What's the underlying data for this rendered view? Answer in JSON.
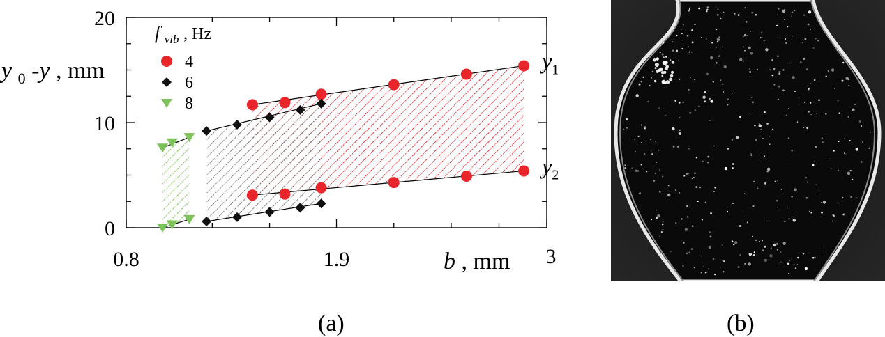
{
  "chart_data": {
    "type": "scatter",
    "xlabel": "b",
    "xunit": "mm",
    "ylabel_parts": {
      "a": "y",
      "a_sub": "0",
      "b": "-y",
      "unit": "mm"
    },
    "xlim": [
      0.8,
      3.0
    ],
    "ylim": [
      0,
      20
    ],
    "x_tick_labels": [
      "0.8",
      "1.9",
      "3"
    ],
    "x_tick_values": [
      0.8,
      1.9,
      3.0
    ],
    "x_minor_ticks": [
      1.25,
      1.55,
      2.2,
      2.5,
      2.75
    ],
    "y_tick_labels": [
      "0",
      "10",
      "20"
    ],
    "y_tick_values": [
      0,
      10,
      20
    ],
    "y_minor_ticks": [
      2.5,
      5,
      7.5,
      12.5,
      15,
      17.5
    ],
    "grid": false,
    "legend": {
      "title_main": "f",
      "title_sub": "vib",
      "title_unit": ", Hz",
      "placement": "top-left"
    },
    "curve_labels": [
      {
        "main": "y",
        "sub": "1",
        "series": "4",
        "curve": "y1"
      },
      {
        "main": "y",
        "sub": "2",
        "series": "4",
        "curve": "y2"
      }
    ],
    "series": [
      {
        "name": "4",
        "color": "#e8252a",
        "marker": "circle",
        "hatch": "#e8252a",
        "y1": {
          "x": [
            1.46,
            1.63,
            1.82,
            2.2,
            2.58,
            2.88
          ],
          "y": [
            11.7,
            11.9,
            12.7,
            13.6,
            14.6,
            15.4
          ]
        },
        "y2": {
          "x": [
            1.46,
            1.63,
            1.82,
            2.2,
            2.58,
            2.88
          ],
          "y": [
            3.1,
            3.2,
            3.8,
            4.3,
            4.9,
            5.4
          ]
        }
      },
      {
        "name": "6",
        "color": "#111111",
        "marker": "diamond",
        "hatch": "#777777",
        "y1": {
          "x": [
            1.22,
            1.38,
            1.55,
            1.71,
            1.82
          ],
          "y": [
            9.2,
            9.8,
            10.5,
            11.2,
            11.8
          ]
        },
        "y2": {
          "x": [
            1.22,
            1.38,
            1.55,
            1.71,
            1.82
          ],
          "y": [
            0.6,
            1.0,
            1.5,
            1.9,
            2.3
          ]
        }
      },
      {
        "name": "8",
        "color": "#7ec35a",
        "marker": "triangle-down",
        "hatch": "#7ec35a",
        "y1": {
          "x": [
            0.99,
            1.04,
            1.13
          ],
          "y": [
            7.6,
            8.1,
            8.6
          ]
        },
        "y2": {
          "x": [
            0.99,
            1.04,
            1.13
          ],
          "y": [
            0.0,
            0.3,
            0.8
          ]
        }
      }
    ]
  },
  "captions": {
    "a": "(a)",
    "b": "(b)"
  }
}
